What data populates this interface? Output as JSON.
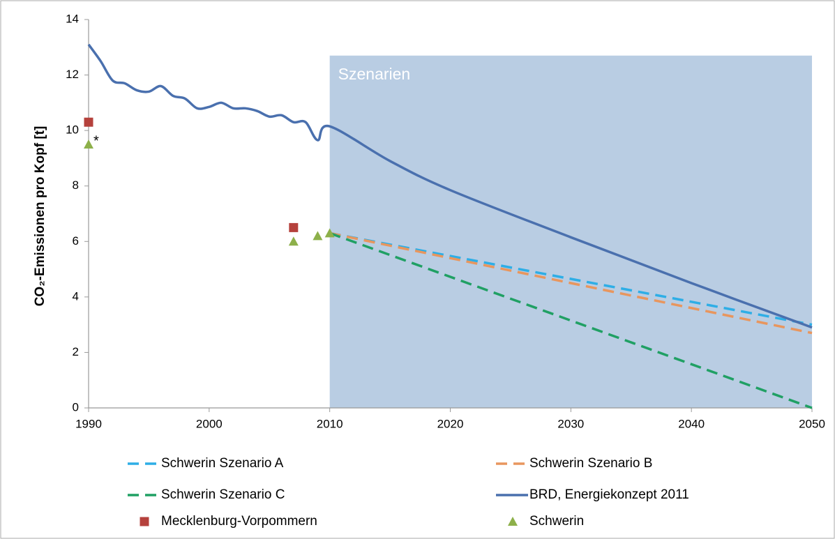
{
  "chart_data": {
    "type": "line",
    "ylabel": "CO₂-Emissionen pro Kopf  [t]",
    "xlim": [
      1990,
      2050
    ],
    "xticks": [
      1990,
      2000,
      2010,
      2020,
      2030,
      2040,
      2050
    ],
    "ylim": [
      0,
      14
    ],
    "yticks": [
      0,
      2,
      4,
      6,
      8,
      10,
      12,
      14
    ],
    "grid": false,
    "shaded_region": {
      "label": "Szenarien",
      "x": [
        2010,
        2050
      ],
      "top": 12.7,
      "color": "#b9cde3"
    },
    "annotations": [
      {
        "text": "*",
        "x": 1990,
        "y": 9.5
      }
    ],
    "series": [
      {
        "name": "Schwerin Szenario A",
        "color": "#2eaee6",
        "style": "dashed",
        "x": [
          2010,
          2050
        ],
        "values": [
          6.3,
          3.0
        ]
      },
      {
        "name": "Schwerin Szenario B",
        "color": "#e8965e",
        "style": "dashed",
        "x": [
          2010,
          2050
        ],
        "values": [
          6.3,
          2.7
        ]
      },
      {
        "name": "Schwerin Szenario C",
        "color": "#20a064",
        "style": "dashed",
        "x": [
          2010,
          2050
        ],
        "values": [
          6.3,
          0
        ]
      },
      {
        "name": "BRD, Energiekonzept 2011",
        "color": "#4a70ae",
        "style": "solid",
        "x": [
          1990,
          1991,
          1992,
          1993,
          1994,
          1995,
          1996,
          1997,
          1998,
          1999,
          2000,
          2001,
          2002,
          2003,
          2004,
          2005,
          2006,
          2007,
          2008,
          2009,
          2010,
          2015,
          2020,
          2030,
          2040,
          2050
        ],
        "values": [
          13.1,
          12.5,
          11.8,
          11.7,
          11.45,
          11.4,
          11.6,
          11.25,
          11.15,
          10.8,
          10.85,
          11.0,
          10.8,
          10.8,
          10.7,
          10.5,
          10.55,
          10.3,
          10.3,
          9.65,
          10.15,
          8.9,
          7.85,
          6.15,
          4.5,
          2.9
        ]
      },
      {
        "name": "Mecklenburg-Vorpommern",
        "color": "#b5413c",
        "style": "marker",
        "marker": "square",
        "x": [
          1990,
          2007
        ],
        "values": [
          10.3,
          6.5
        ]
      },
      {
        "name": "Schwerin",
        "color": "#8db04a",
        "style": "marker",
        "marker": "triangle",
        "x": [
          1990,
          2007,
          2009,
          2010
        ],
        "values": [
          9.5,
          6.0,
          6.2,
          6.3
        ]
      }
    ]
  }
}
